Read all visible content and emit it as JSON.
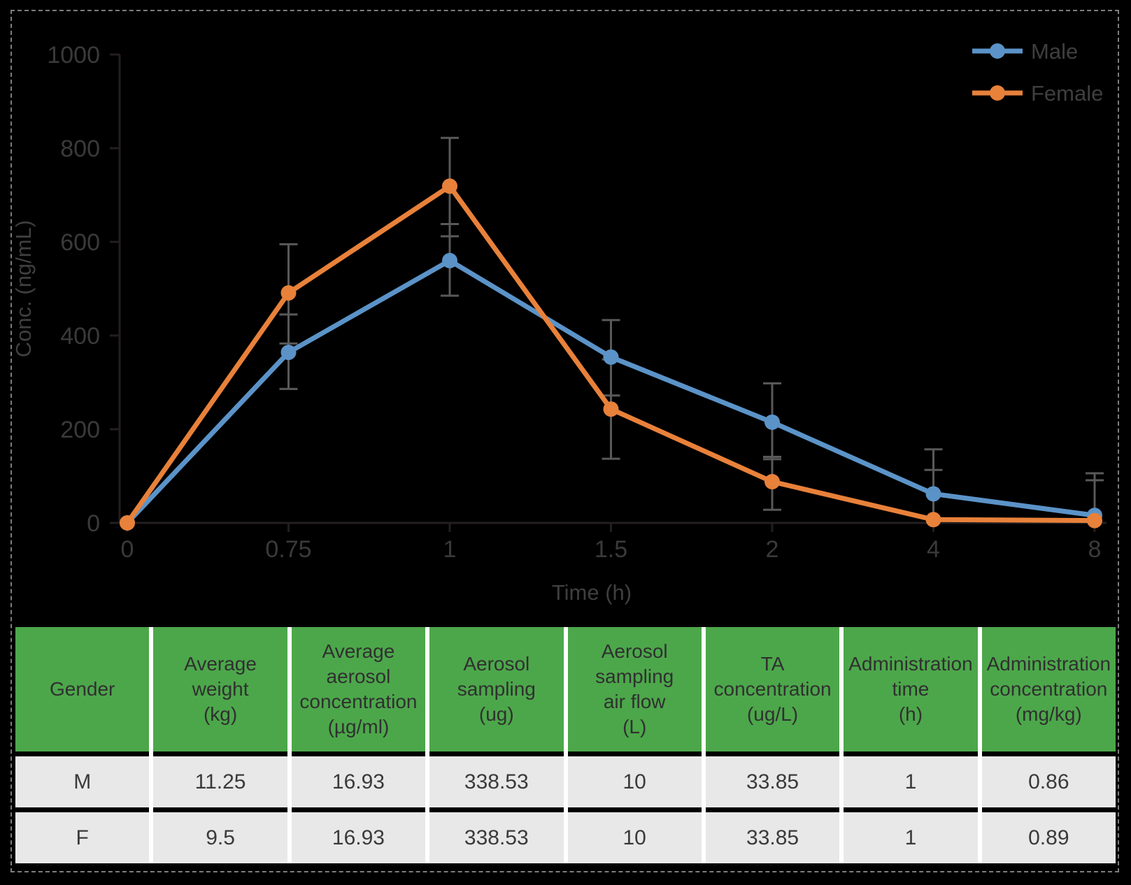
{
  "chart_data": {
    "type": "line",
    "title": "",
    "xlabel": "Time (h)",
    "ylabel": "Conc. (ng/mL)",
    "categories": [
      "0",
      "0.75",
      "1",
      "1.5",
      "2",
      "4",
      "8"
    ],
    "x_numeric": [
      0,
      0.75,
      1,
      1.5,
      2,
      4,
      8
    ],
    "y_ticks": [
      "0",
      "200",
      "400",
      "600",
      "800",
      "1000"
    ],
    "ylim": [
      0,
      1000
    ],
    "grid": false,
    "legend_position": "top-right",
    "series": [
      {
        "name": "Male",
        "color": "#5B93C8",
        "values": [
          0,
          364,
          560,
          354,
          215,
          62,
          16
        ],
        "error_low": [
          null,
          286,
          485,
          272,
          136,
          0,
          0
        ],
        "error_high": [
          null,
          445,
          638,
          433,
          298,
          157,
          106
        ]
      },
      {
        "name": "Female",
        "color": "#E8813A",
        "values": [
          0,
          491,
          719,
          243,
          88,
          7,
          5
        ],
        "error_low": [
          null,
          383,
          612,
          137,
          28,
          0,
          0
        ],
        "error_high": [
          null,
          595,
          822,
          349,
          141,
          113,
          91
        ]
      }
    ],
    "error_bar_color": "#595959",
    "axis_color": "#241e20",
    "tick_label_color": "#3a3a3a",
    "axis_title_color": "#3f3f3f",
    "legend_text_color": "#3f3f3f"
  },
  "table": {
    "header_bg": "#4CA74A",
    "row_bg": "#E9E8E8",
    "headers": [
      [
        "Gender"
      ],
      [
        "Average",
        "weight",
        "(kg)"
      ],
      [
        "Average",
        "aerosol",
        "concentration",
        "(µg/ml)"
      ],
      [
        "Aerosol",
        "sampling",
        "(ug)"
      ],
      [
        "Aerosol",
        "sampling",
        "air flow",
        "(L)"
      ],
      [
        "TA",
        "concentration",
        "(ug/L)"
      ],
      [
        "Administration",
        "time",
        "(h)"
      ],
      [
        "Administration",
        "concentration",
        "(mg/kg)"
      ]
    ],
    "rows": [
      [
        "M",
        "11.25",
        "16.93",
        "338.53",
        "10",
        "33.85",
        "1",
        "0.86"
      ],
      [
        "F",
        "9.5",
        "16.93",
        "338.53",
        "10",
        "33.85",
        "1",
        "0.89"
      ]
    ]
  }
}
